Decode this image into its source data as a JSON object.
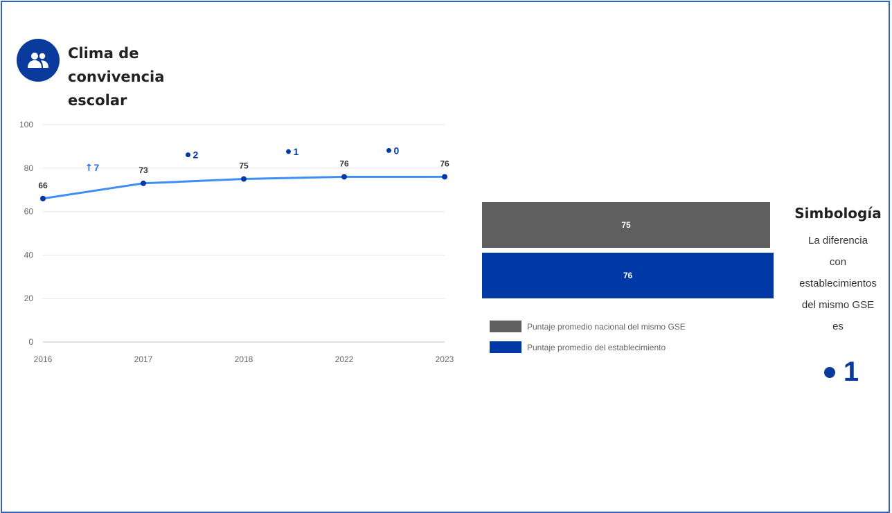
{
  "header": {
    "title_line1": "Clima de",
    "title_line2": "convivencia escolar",
    "icon": "people-group-icon"
  },
  "chart_data": [
    {
      "type": "line",
      "x": [
        "2016",
        "2017",
        "2018",
        "2022",
        "2023"
      ],
      "series": [
        {
          "values": [
            66,
            73,
            75,
            76,
            76
          ],
          "data_labels": [
            "66",
            "73",
            "75",
            "76",
            "76"
          ]
        }
      ],
      "changes": [
        {
          "between": [
            "2016",
            "2017"
          ],
          "symbol": "↑",
          "value": "7"
        },
        {
          "between": [
            "2017",
            "2018"
          ],
          "symbol": "●",
          "value": "2"
        },
        {
          "between": [
            "2018",
            "2022"
          ],
          "symbol": "●",
          "value": "1"
        },
        {
          "between": [
            "2022",
            "2023"
          ],
          "symbol": "●",
          "value": "0"
        }
      ],
      "ylim": [
        0,
        100
      ],
      "yticks": [
        0,
        20,
        40,
        60,
        80,
        100
      ],
      "grid": true,
      "line_color": "#3d8ef5",
      "point_color": "#0039a6"
    },
    {
      "type": "bar",
      "orientation": "horizontal",
      "series": [
        {
          "name": "Puntaje promedio nacional del mismo GSE",
          "value": 75,
          "color": "#5f5f5f"
        },
        {
          "name": "Puntaje promedio del establecimiento",
          "value": 76,
          "color": "#0039a6"
        }
      ]
    }
  ],
  "bars": {
    "national_label": "75",
    "school_label": "76"
  },
  "legend": {
    "national": "Puntaje promedio nacional del mismo GSE",
    "school": "Puntaje promedio del establecimiento",
    "national_color": "#5f5f5f",
    "school_color": "#0039a6"
  },
  "simbologia": {
    "title": "Simbología",
    "line1": "La diferencia",
    "line2": "con",
    "line3": "establecimientos",
    "line4": "del mismo GSE",
    "line5": "es",
    "value": "1",
    "symbol": "dot"
  }
}
